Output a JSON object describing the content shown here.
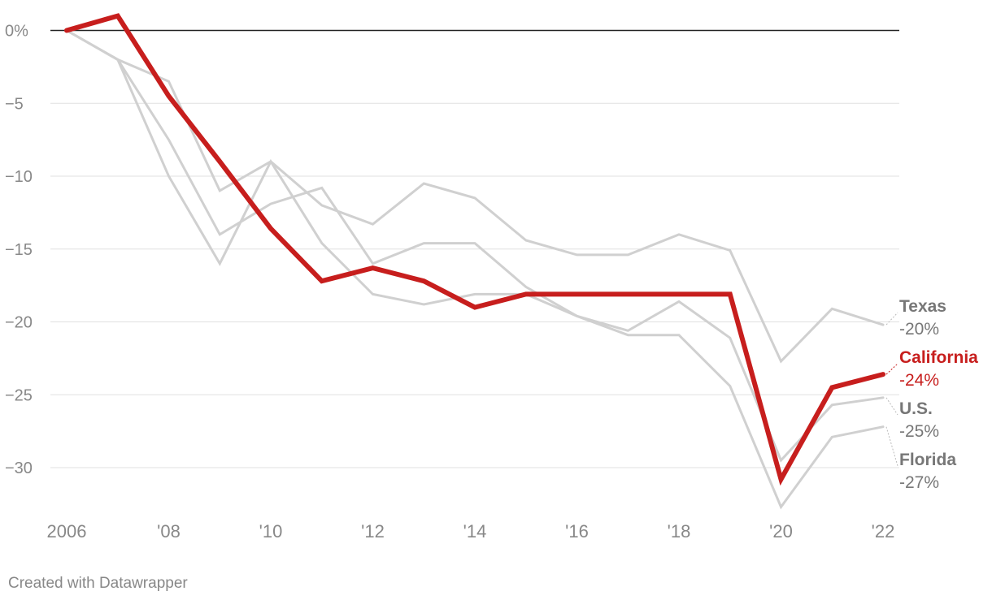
{
  "chart_data": {
    "type": "line",
    "x": [
      2006,
      2007,
      2008,
      2009,
      2010,
      2011,
      2012,
      2013,
      2014,
      2015,
      2016,
      2017,
      2018,
      2019,
      2020,
      2021,
      2022
    ],
    "x_tick_values": [
      2006,
      2008,
      2010,
      2012,
      2014,
      2016,
      2018,
      2020,
      2022
    ],
    "x_tick_labels": [
      "2006",
      "'08",
      "'10",
      "'12",
      "'14",
      "'16",
      "'18",
      "'20",
      "'22"
    ],
    "y_tick_values": [
      0,
      -5,
      -10,
      -15,
      -20,
      -25,
      -30
    ],
    "y_tick_labels": [
      "0%",
      "−5",
      "−10",
      "−15",
      "−20",
      "−25",
      "−30"
    ],
    "ylim": [
      -33,
      1
    ],
    "xlim": [
      2006,
      2022
    ],
    "grid": true,
    "series": [
      {
        "name": "Texas",
        "value_label": "-20%",
        "color": "#d0d0d0",
        "label_color": "#777777",
        "highlight": false,
        "values": [
          0,
          -2,
          -3.5,
          -11,
          -9,
          -12,
          -13.3,
          -10.5,
          -11.5,
          -14.4,
          -15.4,
          -15.4,
          -14,
          -15.1,
          -22.7,
          -19.1,
          -20.2
        ]
      },
      {
        "name": "U.S.",
        "value_label": "-25%",
        "color": "#d0d0d0",
        "label_color": "#777777",
        "highlight": false,
        "values": [
          0,
          -2,
          -7.5,
          -14,
          -11.9,
          -10.8,
          -16,
          -14.6,
          -14.6,
          -17.6,
          -19.6,
          -20.6,
          -18.6,
          -21.1,
          -29.5,
          -25.7,
          -25.2
        ]
      },
      {
        "name": "Florida",
        "value_label": "-27%",
        "color": "#d0d0d0",
        "label_color": "#777777",
        "highlight": false,
        "values": [
          0,
          -2,
          -10,
          -16,
          -9,
          -14.6,
          -18.1,
          -18.8,
          -18.1,
          -18.1,
          -19.6,
          -20.9,
          -20.9,
          -24.4,
          -32.7,
          -27.9,
          -27.2
        ]
      },
      {
        "name": "California",
        "value_label": "-24%",
        "color": "#c71e1d",
        "label_color": "#c71e1d",
        "highlight": true,
        "values": [
          0,
          1,
          -4.5,
          -9,
          -13.6,
          -17.2,
          -16.3,
          -17.2,
          -19,
          -18.1,
          -18.1,
          -18.1,
          -18.1,
          -18.1,
          -30.8,
          -24.5,
          -23.6
        ]
      }
    ]
  },
  "credit": "Created with Datawrapper"
}
